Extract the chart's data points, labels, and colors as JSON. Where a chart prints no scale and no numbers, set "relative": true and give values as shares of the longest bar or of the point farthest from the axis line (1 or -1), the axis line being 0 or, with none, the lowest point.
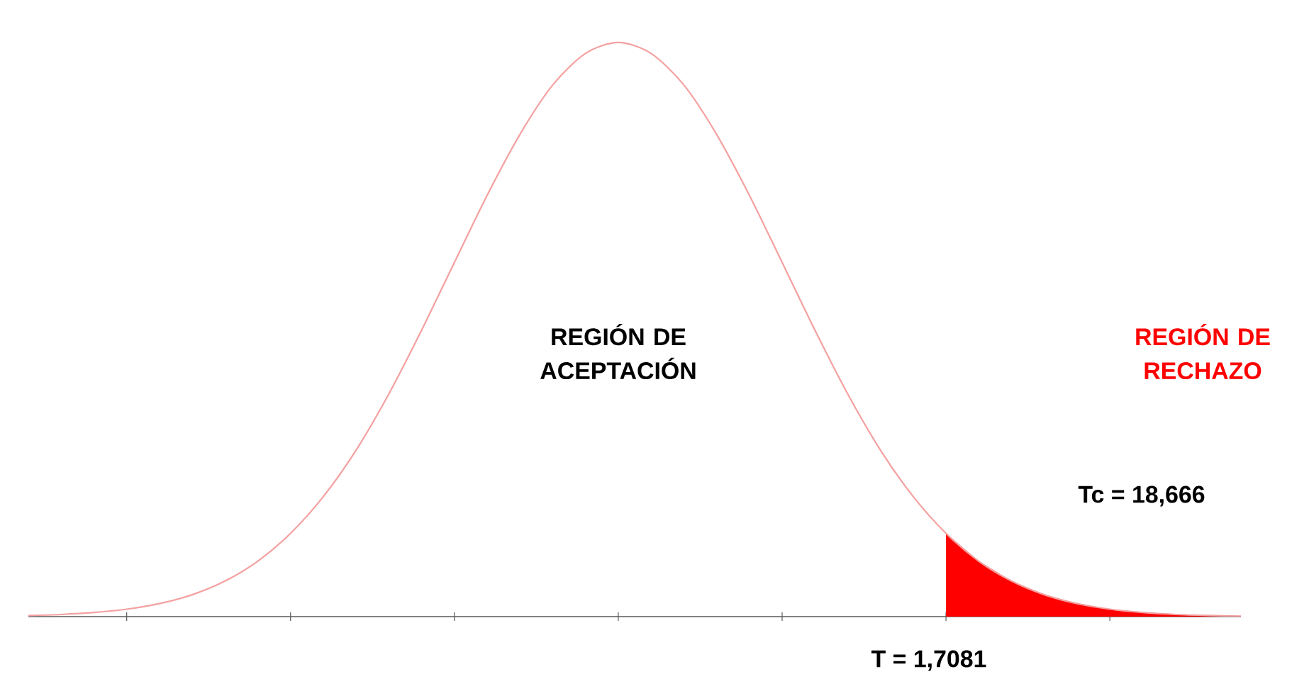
{
  "chart_data": {
    "type": "line",
    "relative": true,
    "categories": [
      null,
      null,
      null,
      null,
      null,
      null,
      null,
      null,
      null,
      null,
      null,
      null,
      null,
      null,
      null,
      null,
      null,
      null,
      null,
      null,
      null,
      null,
      null,
      null,
      null,
      null,
      null,
      null,
      null,
      null,
      null,
      null,
      null,
      null,
      null,
      null,
      null,
      null
    ],
    "series": [
      {
        "color": "#f4a0a0",
        "values": [
          0.0019,
          0.0037,
          0.0071,
          0.0129,
          0.0226,
          0.0381,
          0.0619,
          0.0965,
          0.145,
          0.209,
          0.29,
          0.388,
          0.499,
          0.617,
          0.734,
          0.84,
          0.926,
          0.981,
          1,
          0.981,
          0.926,
          0.84,
          0.734,
          0.617,
          0.499,
          0.388,
          0.29,
          0.209,
          0.145,
          0.0965,
          0.0619,
          0.0381,
          0.0226,
          0.0129,
          0.0071,
          0.0037,
          0.0019,
          0.0009
        ]
      },
      {
        "type": "area",
        "color": "#ff0000",
        "values": [
          null,
          null,
          null,
          null,
          null,
          null,
          null,
          null,
          null,
          null,
          null,
          null,
          null,
          null,
          null,
          null,
          null,
          null,
          null,
          null,
          null,
          null,
          null,
          null,
          null,
          null,
          null,
          null,
          0.145,
          0.0965,
          0.0619,
          0.0381,
          0.0226,
          0.0129,
          0.0071,
          0.0037,
          0.0019,
          0.0009
        ]
      }
    ],
    "annotations": [
      "REGIÓN DE ACEPTACIÓN",
      "REGIÓN DE RECHAZO",
      "Tc = 18,666",
      "T = 1,7081"
    ]
  }
}
